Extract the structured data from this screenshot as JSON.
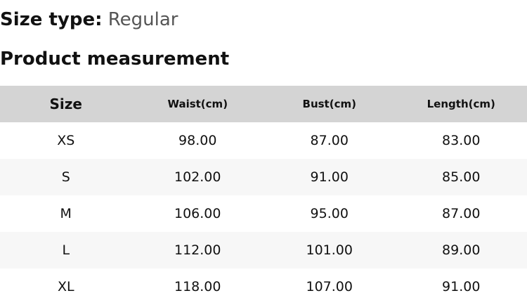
{
  "size_type": {
    "label": "Size type:",
    "value": "Regular"
  },
  "section_title": "Product measurement",
  "table": {
    "headers": [
      "Size",
      "Waist(cm)",
      "Bust(cm)",
      "Length(cm)"
    ],
    "rows": [
      [
        "XS",
        "98.00",
        "87.00",
        "83.00"
      ],
      [
        "S",
        "102.00",
        "91.00",
        "85.00"
      ],
      [
        "M",
        "106.00",
        "95.00",
        "87.00"
      ],
      [
        "L",
        "112.00",
        "101.00",
        "89.00"
      ],
      [
        "XL",
        "118.00",
        "107.00",
        "91.00"
      ]
    ]
  },
  "colors": {
    "header_bg": "#d4d4d4",
    "stripe_bg": "#f7f7f7",
    "value_text": "#555555"
  }
}
